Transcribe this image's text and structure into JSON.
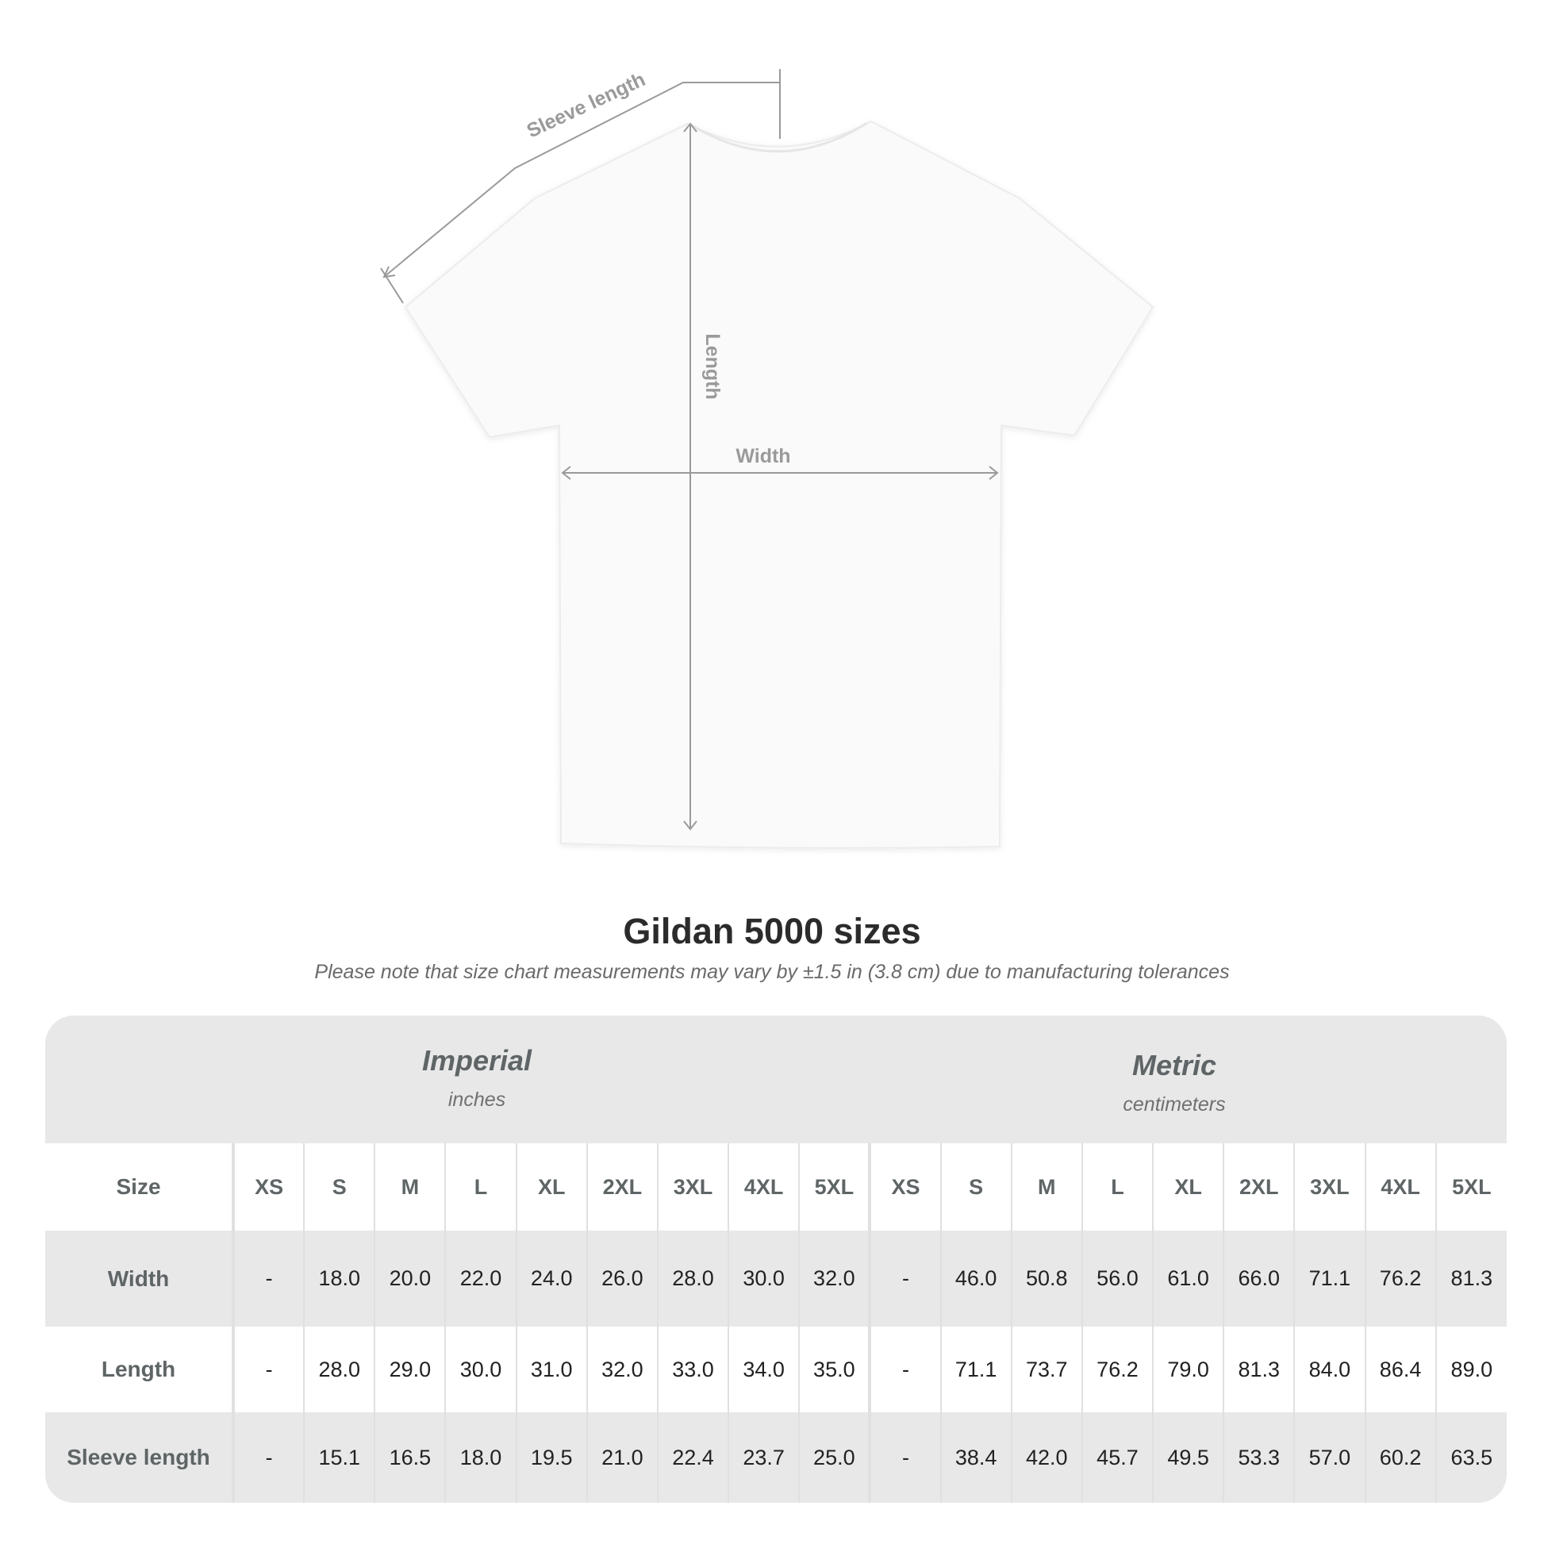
{
  "diagram": {
    "labels": {
      "sleeve": "Sleeve length",
      "length": "Length",
      "width": "Width"
    }
  },
  "title": "Gildan 5000 sizes",
  "subtitle": "Please note that size chart measurements may vary by ±1.5 in (3.8 cm) due to manufacturing tolerances",
  "table": {
    "imperial": {
      "name": "Imperial",
      "unit": "inches"
    },
    "metric": {
      "name": "Metric",
      "unit": "centimeters"
    },
    "size_label": "Size",
    "sizes": [
      "XS",
      "S",
      "M",
      "L",
      "XL",
      "2XL",
      "3XL",
      "4XL",
      "5XL"
    ],
    "rows": [
      {
        "label": "Width",
        "imperial": [
          "-",
          "18.0",
          "20.0",
          "22.0",
          "24.0",
          "26.0",
          "28.0",
          "30.0",
          "32.0"
        ],
        "metric": [
          "-",
          "46.0",
          "50.8",
          "56.0",
          "61.0",
          "66.0",
          "71.1",
          "76.2",
          "81.3"
        ]
      },
      {
        "label": "Length",
        "imperial": [
          "-",
          "28.0",
          "29.0",
          "30.0",
          "31.0",
          "32.0",
          "33.0",
          "34.0",
          "35.0"
        ],
        "metric": [
          "-",
          "71.1",
          "73.7",
          "76.2",
          "79.0",
          "81.3",
          "84.0",
          "86.4",
          "89.0"
        ]
      },
      {
        "label": "Sleeve length",
        "imperial": [
          "-",
          "15.1",
          "16.5",
          "18.0",
          "19.5",
          "21.0",
          "22.4",
          "23.7",
          "25.0"
        ],
        "metric": [
          "-",
          "38.4",
          "42.0",
          "45.7",
          "49.5",
          "53.3",
          "57.0",
          "60.2",
          "63.5"
        ]
      }
    ]
  }
}
